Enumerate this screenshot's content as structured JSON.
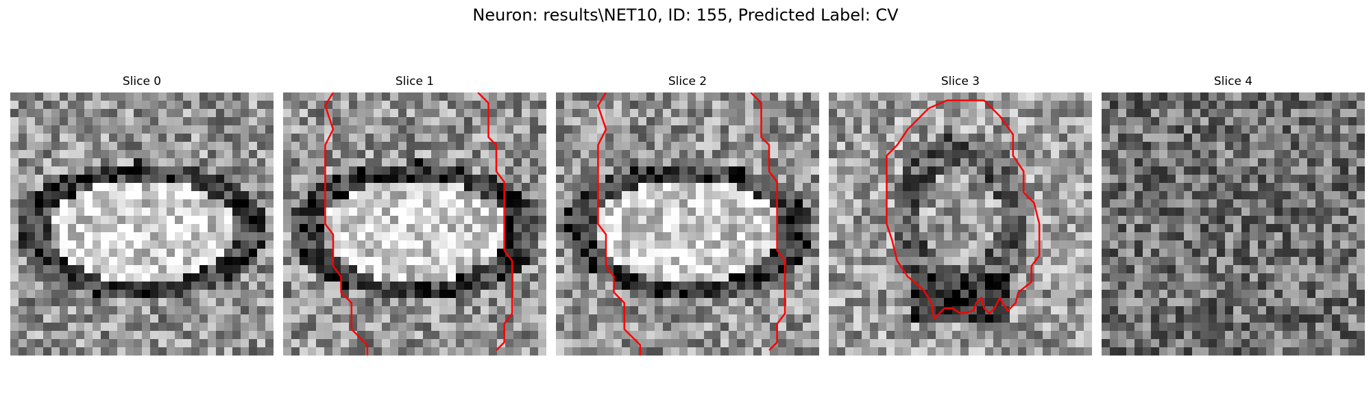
{
  "figure": {
    "title": "Neuron: results\\NET10, ID: 155, Predicted Label: CV"
  },
  "panels": [
    {
      "title": "Slice 0",
      "seed": 11,
      "motif": "oval",
      "contour": []
    },
    {
      "title": "Slice 1",
      "seed": 23,
      "motif": "oval",
      "contour": [
        "left-boundary",
        "right-boundary"
      ]
    },
    {
      "title": "Slice 2",
      "seed": 37,
      "motif": "oval",
      "contour": [
        "left-boundary",
        "right-boundary"
      ]
    },
    {
      "title": "Slice 3",
      "seed": 51,
      "motif": "blob",
      "contour": [
        "closed-outline"
      ]
    },
    {
      "title": "Slice 4",
      "seed": 67,
      "motif": "noise",
      "contour": []
    }
  ],
  "colors": {
    "contour": "#ff0000",
    "background": "#ffffff"
  },
  "image": {
    "colormap": "gray",
    "grid_cells": 32
  }
}
